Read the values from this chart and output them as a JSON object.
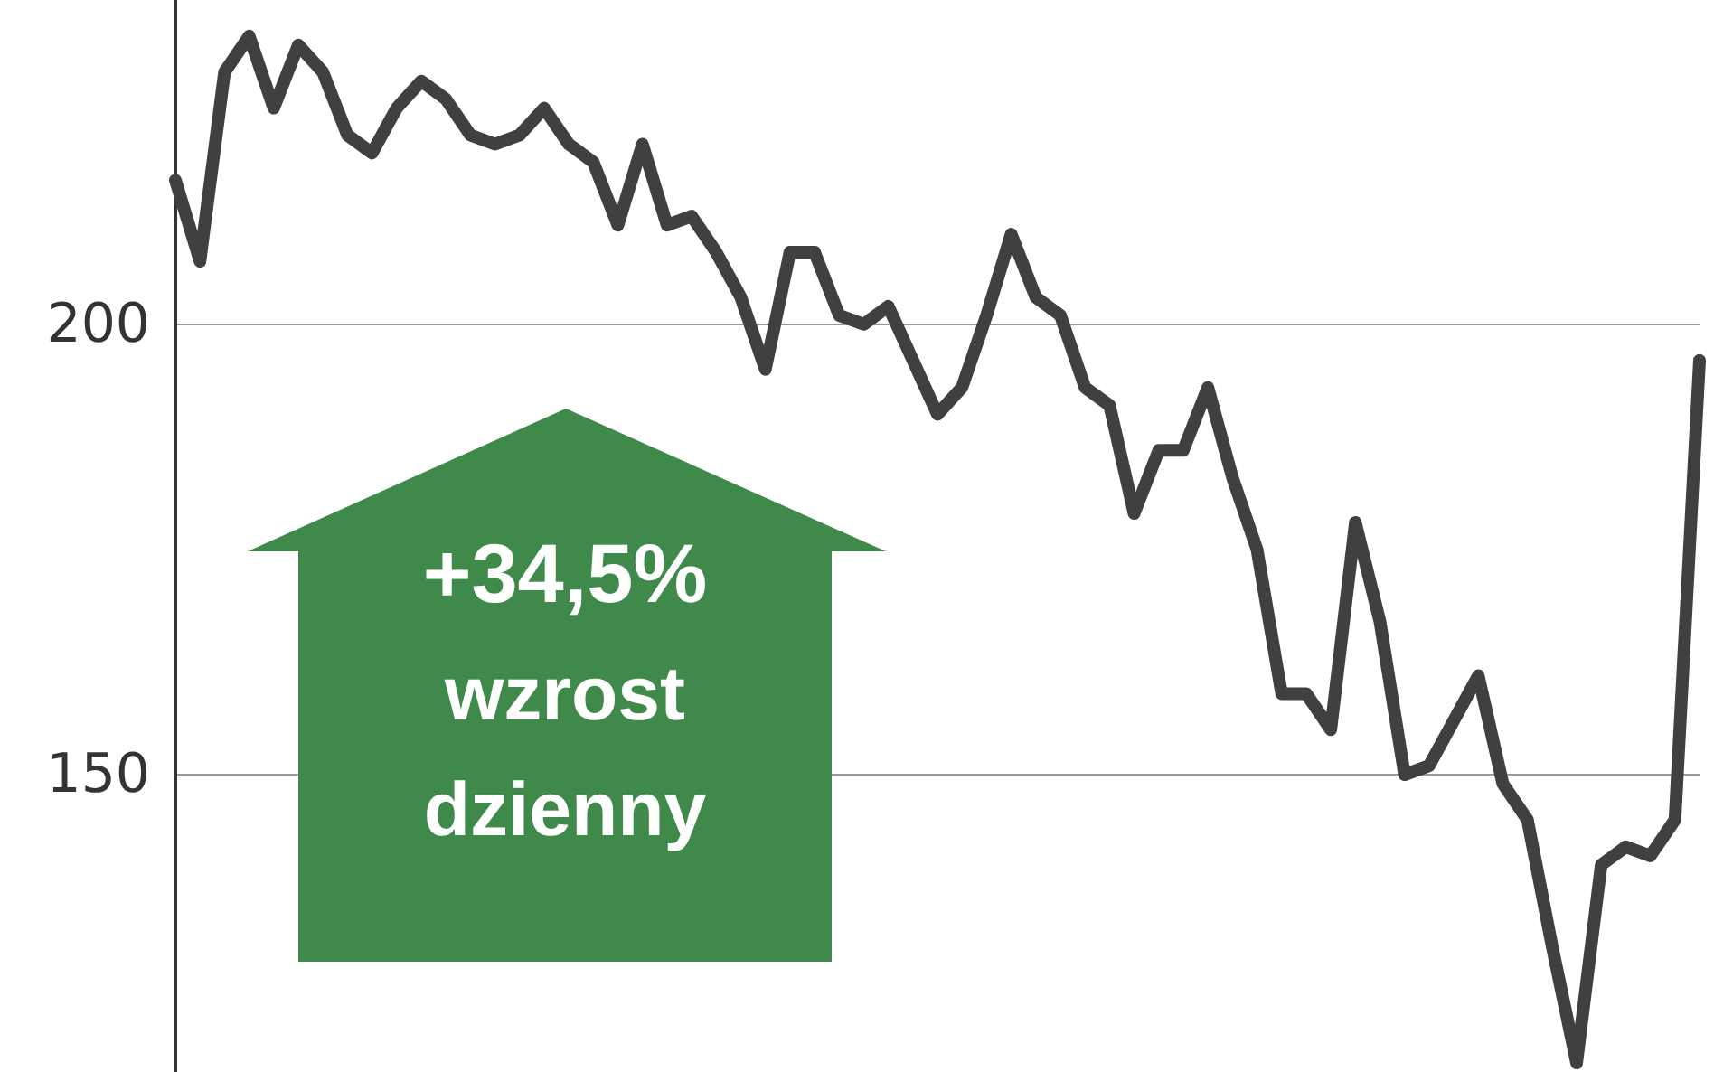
{
  "chart_data": {
    "type": "line",
    "categories": [
      null,
      null,
      null,
      null,
      null,
      null,
      null,
      null,
      null,
      null,
      null,
      null,
      null,
      null,
      null,
      null,
      null,
      null,
      null,
      null,
      null,
      null,
      null,
      null,
      null,
      null,
      null,
      null,
      null,
      null,
      null,
      null,
      null,
      null,
      null,
      null,
      null,
      null,
      null,
      null,
      null,
      null,
      null,
      null,
      null,
      null,
      null,
      null,
      null,
      null,
      null,
      null,
      null,
      null,
      null,
      null,
      null,
      null,
      null,
      null,
      null,
      null,
      null
    ],
    "series": [
      {
        "color": "#404040",
        "values": [
          216,
          207,
          228,
          232,
          224,
          231,
          228,
          221,
          219,
          224,
          227,
          225,
          221,
          220,
          221,
          224,
          220,
          218,
          211,
          220,
          211,
          212,
          208,
          203,
          195,
          208,
          208,
          201,
          200,
          202,
          196,
          190,
          193,
          201,
          210,
          203,
          201,
          193,
          191,
          179,
          186,
          186,
          193,
          183,
          175,
          159,
          159,
          155,
          178,
          167,
          150,
          151,
          156,
          161,
          149,
          145,
          131,
          118,
          140,
          142,
          141,
          145,
          196
        ]
      }
    ],
    "ylim": [
      117,
      236
    ],
    "yticks": [
      150,
      200
    ],
    "grid": "y",
    "tick_labels": "y",
    "line_style": "solid",
    "annotations": [
      "+34,5%",
      "wzrost",
      "dzienny"
    ]
  }
}
